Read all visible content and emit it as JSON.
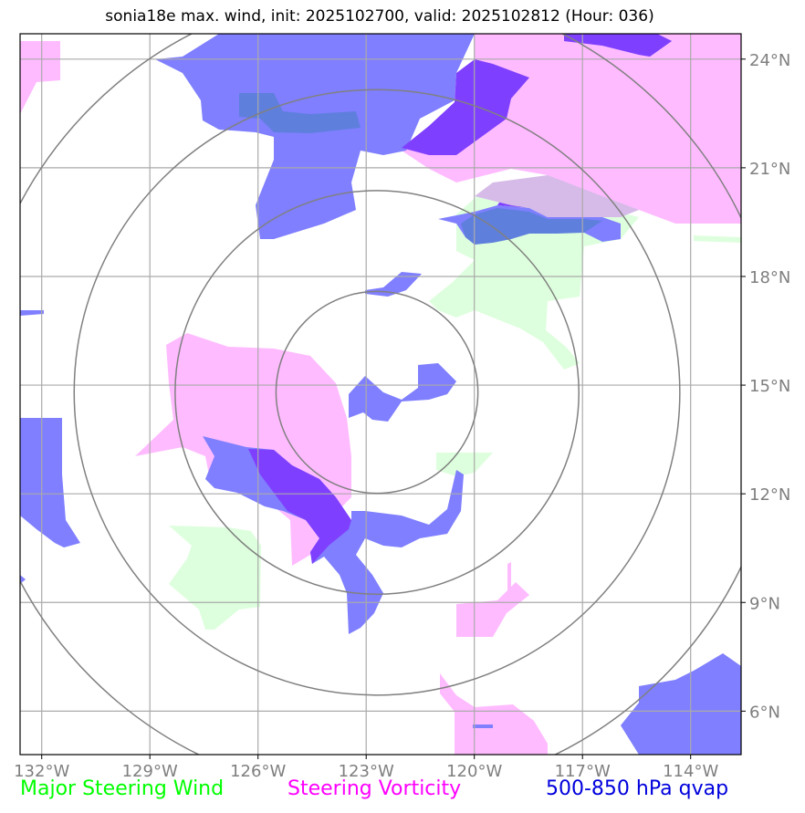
{
  "title": "sonia18e max. wind, init: 2025102700, valid: 2025102812 (Hour: 036)",
  "lon_ticks": [
    "132°W",
    "129°W",
    "126°W",
    "123°W",
    "120°W",
    "117°W",
    "114°W"
  ],
  "lat_ticks": [
    "24°N",
    "21°N",
    "18°N",
    "15°N",
    "12°N",
    "9°N",
    "6°N"
  ],
  "legend": {
    "wind": "Major Steering Wind",
    "vorticity": "Steering Vorticity",
    "qvap": "500-850 hPa qvap"
  },
  "colors": {
    "wind": "#00ff00",
    "vorticity": "#ff00ff",
    "qvap": "#0000dd",
    "wind_fill": "#ddffdd",
    "vorticity_fill": "#ffbbff",
    "qvap_fill": "#7f7fff",
    "overlap_fill": "#7f3fff",
    "grid": "#aaaaaa",
    "ring": "#808080"
  },
  "map_data": {
    "lon_range": [
      -132.6,
      -112.6
    ],
    "lat_range": [
      4.8,
      24.7
    ],
    "center": {
      "lon": -122.7,
      "lat": 14.8
    },
    "range_rings_deg": [
      2.8,
      5.6,
      8.4,
      11.2
    ]
  }
}
